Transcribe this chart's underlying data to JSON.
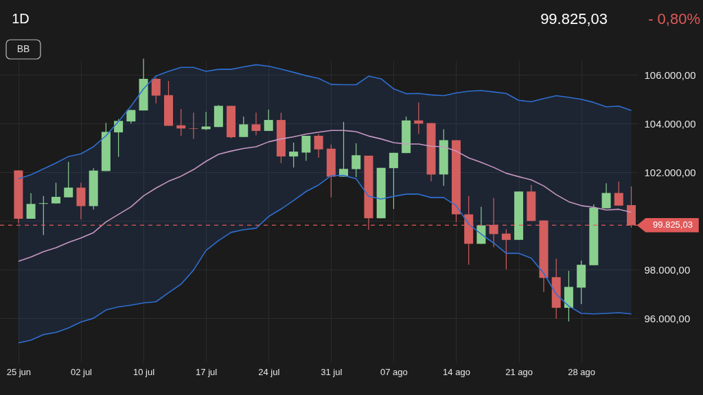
{
  "chart_data": {
    "type": "candlestick",
    "categories": [
      "25 jun",
      null,
      null,
      null,
      null,
      "02 jul",
      null,
      null,
      null,
      null,
      "10 jul",
      null,
      null,
      null,
      null,
      "17 jul",
      null,
      null,
      null,
      null,
      "24 jul",
      null,
      null,
      null,
      null,
      "31 jul",
      null,
      null,
      null,
      null,
      "07 ago",
      null,
      null,
      null,
      null,
      "14 ago",
      null,
      null,
      null,
      null,
      "21 ago",
      null,
      null,
      null,
      null,
      "28 ago",
      null,
      null,
      null,
      null
    ],
    "ohlc": [
      [
        102080,
        102080,
        99900,
        100090
      ],
      [
        100090,
        101140,
        100090,
        100700
      ],
      [
        100700,
        101030,
        99420,
        100730
      ],
      [
        100720,
        101570,
        100720,
        100990
      ],
      [
        100970,
        102430,
        100970,
        101370
      ],
      [
        101370,
        101570,
        100070,
        100610
      ],
      [
        100610,
        102170,
        100470,
        102070
      ],
      [
        102050,
        104030,
        102050,
        103660
      ],
      [
        103640,
        104180,
        102630,
        104110
      ],
      [
        104090,
        104560,
        104000,
        104560
      ],
      [
        104540,
        106670,
        104540,
        105840
      ],
      [
        105840,
        105880,
        104830,
        105150
      ],
      [
        105170,
        105750,
        103910,
        103910
      ],
      [
        103930,
        104600,
        103500,
        103800
      ],
      [
        103810,
        104450,
        103370,
        103790
      ],
      [
        103770,
        104480,
        103730,
        103880
      ],
      [
        103860,
        104760,
        103860,
        104730
      ],
      [
        104730,
        104730,
        103400,
        103440
      ],
      [
        103450,
        104290,
        103450,
        103970
      ],
      [
        103970,
        104450,
        103520,
        103700
      ],
      [
        103700,
        104580,
        103700,
        104150
      ],
      [
        104150,
        104450,
        102380,
        102650
      ],
      [
        102650,
        103220,
        102200,
        102850
      ],
      [
        102810,
        103500,
        102470,
        103500
      ],
      [
        103500,
        103580,
        102600,
        102940
      ],
      [
        102970,
        103140,
        100970,
        101820
      ],
      [
        101820,
        104070,
        101820,
        102140
      ],
      [
        102130,
        103190,
        101800,
        102700
      ],
      [
        102680,
        102680,
        99640,
        100110
      ],
      [
        100110,
        102180,
        100110,
        102180
      ],
      [
        102170,
        102800,
        100490,
        102800
      ],
      [
        102790,
        104290,
        102790,
        104130
      ],
      [
        104130,
        104870,
        103580,
        104000
      ],
      [
        104020,
        104020,
        101630,
        101910
      ],
      [
        101910,
        103770,
        101440,
        103320
      ],
      [
        103320,
        103320,
        99960,
        100270
      ],
      [
        100270,
        101030,
        98200,
        99060
      ],
      [
        99060,
        100580,
        99060,
        99820
      ],
      [
        99840,
        100940,
        98920,
        99460
      ],
      [
        99480,
        99660,
        98010,
        99220
      ],
      [
        99220,
        101210,
        99220,
        101210
      ],
      [
        101210,
        101480,
        100000,
        100000
      ],
      [
        100020,
        100020,
        97080,
        97660
      ],
      [
        97690,
        98450,
        95980,
        96430
      ],
      [
        96430,
        97950,
        95870,
        97290
      ],
      [
        97260,
        98370,
        96590,
        98200
      ],
      [
        98180,
        100680,
        98180,
        100540
      ],
      [
        100520,
        101550,
        100520,
        101150
      ],
      [
        101150,
        101620,
        100630,
        100630
      ],
      [
        100650,
        101420,
        99730,
        99825.03
      ]
    ],
    "colors": [
      "#d35f5f",
      "#8bcf8f",
      "#8bcf8f",
      "#8bcf8f",
      "#8bcf8f",
      "#d35f5f",
      "#8bcf8f",
      "#8bcf8f",
      "#8bcf8f",
      "#8bcf8f",
      "#8bcf8f",
      "#d35f5f",
      "#d35f5f",
      "#d35f5f",
      "#d35f5f",
      "#8bcf8f",
      "#8bcf8f",
      "#d35f5f",
      "#8bcf8f",
      "#d35f5f",
      "#8bcf8f",
      "#d35f5f",
      "#8bcf8f",
      "#8bcf8f",
      "#d35f5f",
      "#d35f5f",
      "#8bcf8f",
      "#8bcf8f",
      "#d35f5f",
      "#8bcf8f",
      "#8bcf8f",
      "#8bcf8f",
      "#d35f5f",
      "#d35f5f",
      "#8bcf8f",
      "#d35f5f",
      "#d35f5f",
      "#8bcf8f",
      "#d35f5f",
      "#d35f5f",
      "#8bcf8f",
      "#d35f5f",
      "#d35f5f",
      "#d35f5f",
      "#8bcf8f",
      "#8bcf8f",
      "#8bcf8f",
      "#8bcf8f",
      "#d35f5f",
      "#d35f5f"
    ],
    "series": [
      {
        "type": "line",
        "color": "#2f6fd0",
        "values": [
          101730,
          101900,
          102140,
          102380,
          102650,
          102760,
          103050,
          103500,
          104090,
          104720,
          105430,
          105960,
          106150,
          106310,
          106310,
          106150,
          106230,
          106230,
          106330,
          106420,
          106360,
          106240,
          106110,
          105970,
          105860,
          105610,
          105600,
          105600,
          105950,
          105840,
          105430,
          105230,
          105240,
          105180,
          105150,
          105260,
          105330,
          105360,
          105300,
          105240,
          104960,
          104900,
          105030,
          105150,
          105080,
          105000,
          104870,
          104690,
          104720,
          104540
        ]
      },
      {
        "type": "line",
        "color": "#c898c4",
        "values": [
          98340,
          98520,
          98740,
          98900,
          99120,
          99300,
          99520,
          99960,
          100270,
          100580,
          101030,
          101350,
          101630,
          101840,
          102110,
          102450,
          102740,
          102870,
          102980,
          103050,
          103250,
          103370,
          103460,
          103570,
          103650,
          103720,
          103720,
          103670,
          103490,
          103370,
          103220,
          103160,
          103160,
          103070,
          103050,
          102870,
          102590,
          102410,
          102200,
          101960,
          101820,
          101690,
          101440,
          101080,
          100790,
          100630,
          100560,
          100450,
          100480,
          100360
        ],
        "upper": [
          101730,
          101900,
          102140,
          102380,
          102650,
          102760,
          103050,
          103500,
          104090,
          104720,
          105430,
          105960,
          106150,
          106310,
          106310,
          106150,
          106230,
          106230,
          106330,
          106420,
          106360,
          106240,
          106110,
          105970,
          105860,
          105610,
          105600,
          105600,
          105950,
          105840,
          105430,
          105230,
          105240,
          105180,
          105150,
          105260,
          105330,
          105360,
          105300,
          105240,
          104960,
          104900,
          105030,
          105150,
          105080,
          105000,
          104870,
          104690,
          104720,
          104540
        ],
        "lower": [
          94990,
          95100,
          95330,
          95420,
          95600,
          95850,
          96000,
          96340,
          96470,
          96540,
          96630,
          96680,
          97050,
          97400,
          97980,
          98790,
          99190,
          99530,
          99640,
          99700,
          100180,
          100490,
          100840,
          101210,
          101480,
          101860,
          101870,
          101730,
          101010,
          100900,
          101010,
          101100,
          101100,
          100960,
          100960,
          100630,
          99870,
          99460,
          99090,
          98670,
          98670,
          98470,
          97850,
          96990,
          96500,
          96200,
          96180,
          96200,
          96230,
          96180
        ]
      },
      {
        "type": "line",
        "color": "#2f6fd0",
        "values": [
          94990,
          95100,
          95330,
          95420,
          95600,
          95850,
          96000,
          96340,
          96470,
          96540,
          96630,
          96680,
          97050,
          97400,
          97980,
          98790,
          99190,
          99530,
          99640,
          99700,
          100180,
          100490,
          100840,
          101210,
          101480,
          101860,
          101870,
          101730,
          101010,
          100900,
          101010,
          101100,
          101100,
          100960,
          100960,
          100630,
          99870,
          99460,
          99090,
          98670,
          98670,
          98470,
          97850,
          96990,
          96500,
          96200,
          96180,
          96200,
          96230,
          96180
        ]
      }
    ],
    "ylim": [
      94200,
      106600
    ],
    "yticks": [
      {
        "value": 96000,
        "label": "96.000,00"
      },
      {
        "value": 98000,
        "label": "98.000,00"
      },
      {
        "value": 100000,
        "label": null
      },
      {
        "value": 102000,
        "label": "102.000,00"
      },
      {
        "value": 104000,
        "label": "104.000,00"
      },
      {
        "value": 106000,
        "label": "106.000,00"
      }
    ],
    "ref_lines": [
      {
        "axis": "y",
        "value": 99825.03,
        "label": "99.825,03",
        "color": "#e05a5a",
        "line_style": "dashed"
      }
    ],
    "annotations": [
      "1D",
      "BB",
      "99.825,03",
      "- 0,80%"
    ],
    "grid": true
  }
}
